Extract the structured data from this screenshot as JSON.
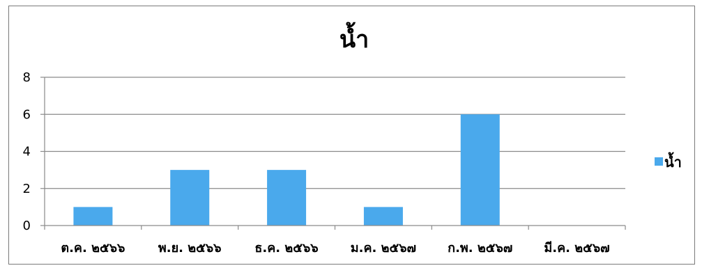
{
  "chart_data": {
    "type": "bar",
    "title": "น้ำ",
    "categories": [
      "ต.ค. ๒๕๖๖",
      "พ.ย. ๒๕๖๖",
      "ธ.ค. ๒๕๖๖",
      "ม.ค. ๒๕๖๗",
      "ก.พ. ๒๕๖๗",
      "มี.ค. ๒๕๖๗"
    ],
    "series": [
      {
        "name": "น้ำ",
        "values": [
          1,
          3,
          3,
          1,
          6,
          0
        ],
        "color": "#4aa9ec"
      }
    ],
    "ylim": [
      0,
      8
    ],
    "yticks": [
      "0",
      "2",
      "4",
      "6",
      "8"
    ],
    "xlabel": "",
    "ylabel": "",
    "grid": true,
    "legend_position": "right"
  }
}
